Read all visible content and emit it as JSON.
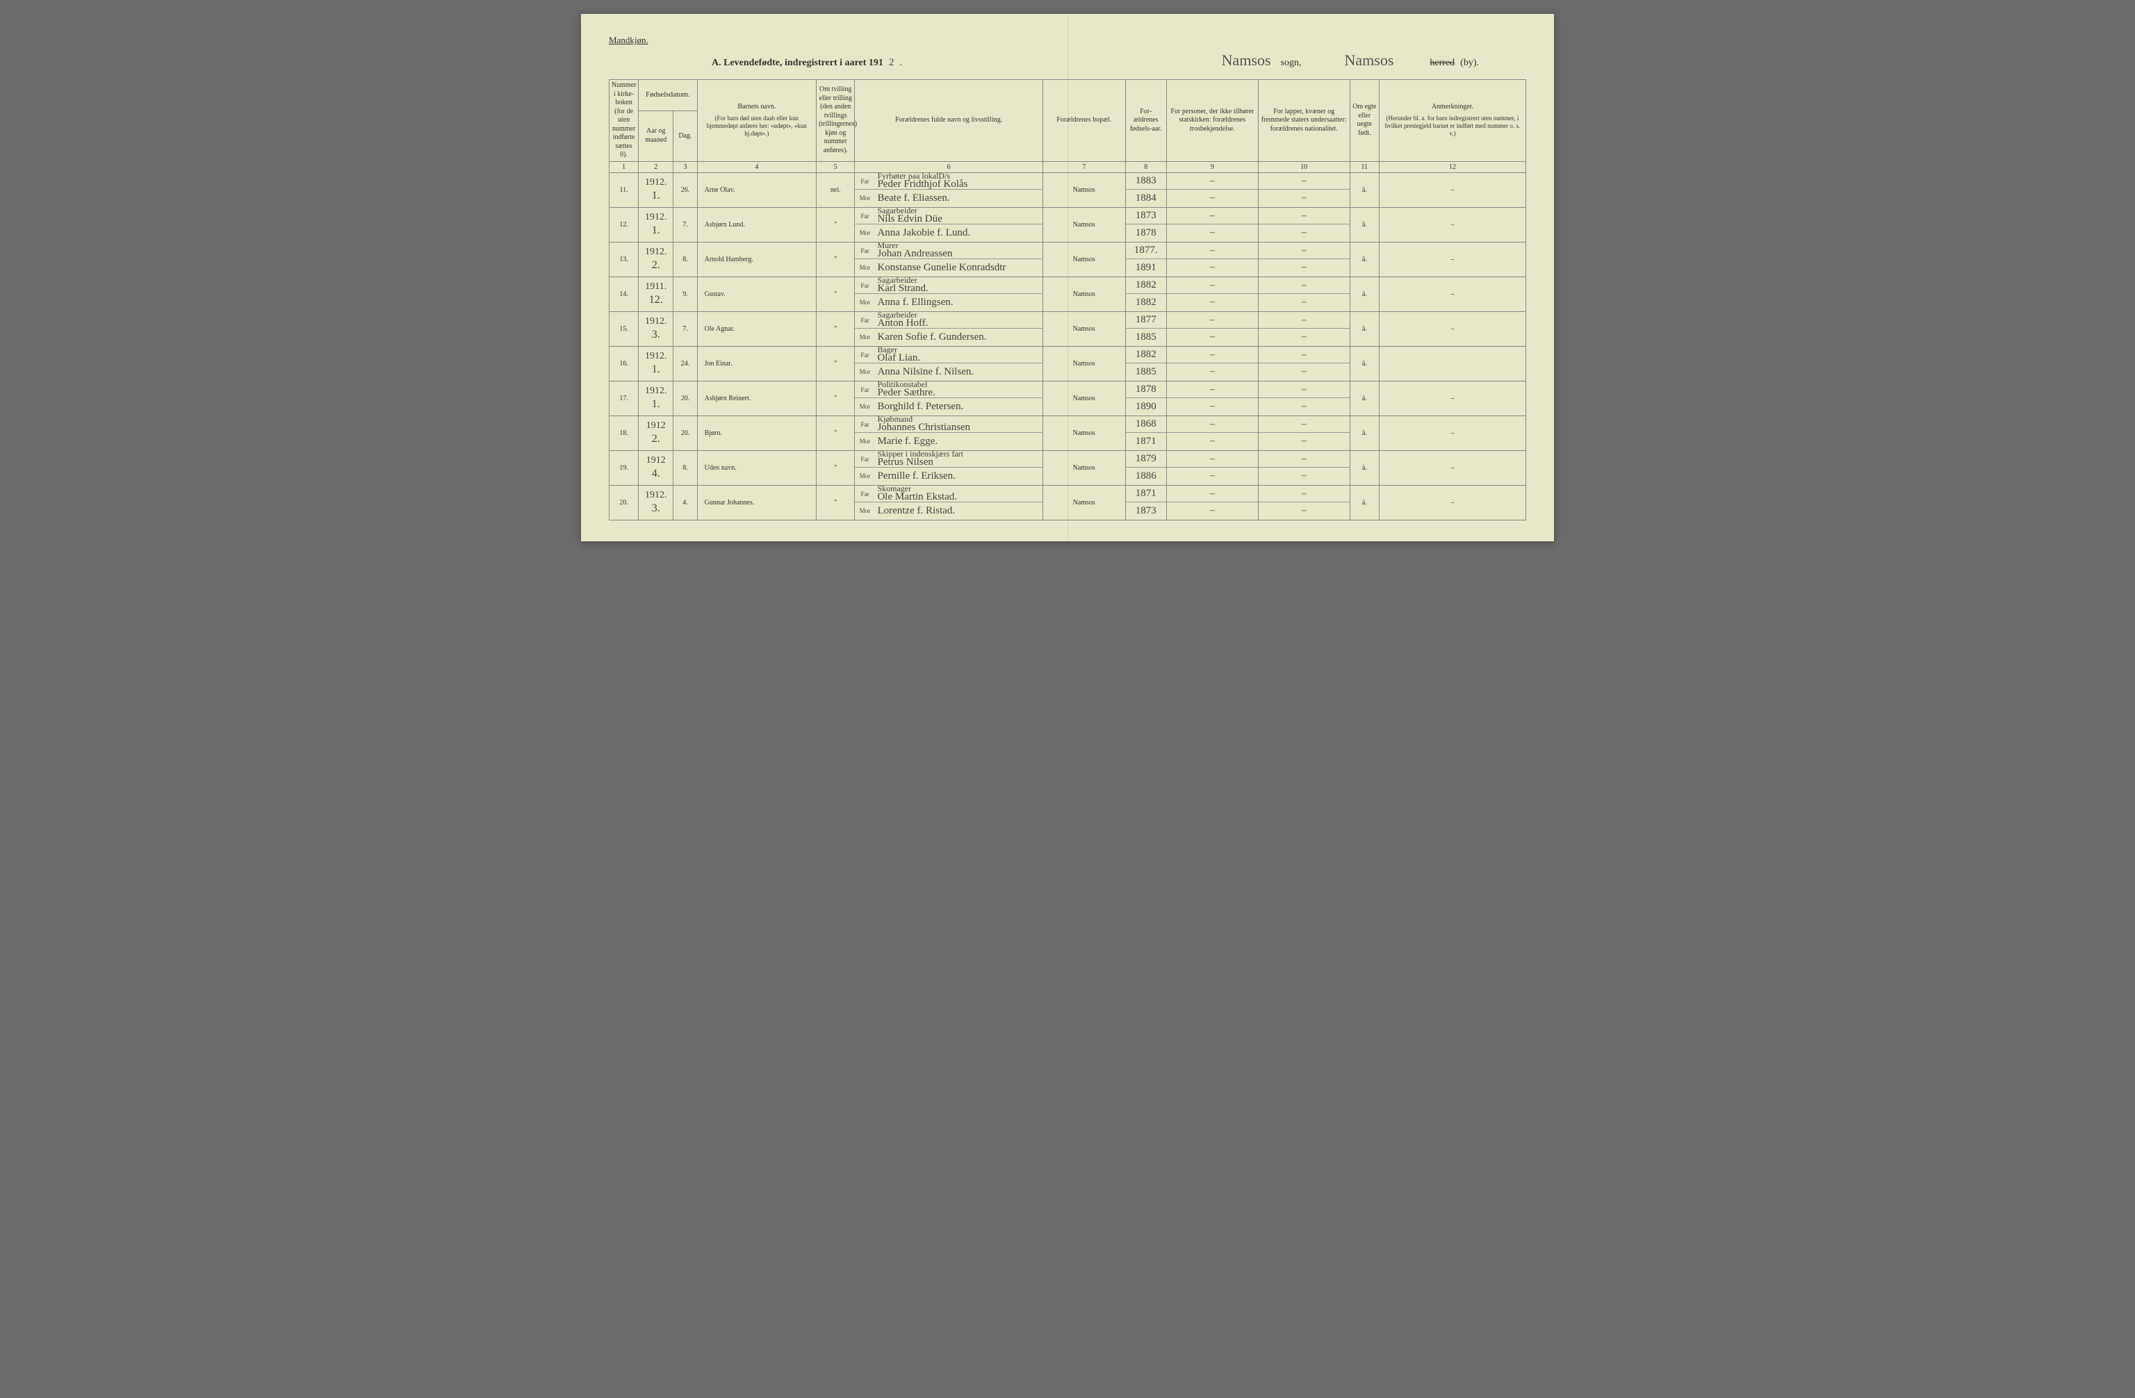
{
  "header": {
    "gender_label": "Mandkjøn.",
    "title_prefix": "A.  Levendefødte, indregistrert i aaret 191",
    "year_suffix": "2",
    "sogn_value": "Namsos",
    "sogn_label": "sogn,",
    "herred_value": "Namsos",
    "herred_strike": "herred",
    "herred_suffix": "(by)."
  },
  "columns": {
    "c1": "Nummer i kirke-boken (for de uten nummer indførte sættes 0).",
    "c2_group": "Fødselsdatum.",
    "c2": "Aar og maaned",
    "c3": "Dag.",
    "c4": "Barnets navn.",
    "c4_sub": "(For barn død uten daab eller kun hjemmedøpt anføres her: «udøpt», «kun hj.døpt».)",
    "c5": "Om tvilling eller trilling (den anden tvillings (trillingernes) kjøn og nummer anføres).",
    "c6": "Forældrenes fulde navn og livsstilling.",
    "c7": "Forældrenes bopæl.",
    "c8": "For-ældrenes fødsels-aar.",
    "c9": "For personer, der ikke tilhører statskirken: forældrenes trosbekjendelse.",
    "c10": "For lapper, kvæner og fremmede staters undersaatter: forældrenes nationalitet.",
    "c11": "Om egte eller uegte født.",
    "c12": "Anmerkninger.",
    "c12_sub": "(Herunder bl. a. for barn indregistrert uten nummer, i hvilket prestegjeld barnet er indført med nummer o. s. v.)",
    "far": "Far",
    "mor": "Mor"
  },
  "colnums": [
    "1",
    "2",
    "3",
    "4",
    "5",
    "",
    "6",
    "7",
    "8",
    "9",
    "10",
    "11",
    "12"
  ],
  "rows": [
    {
      "num": "11.",
      "year": "1912.",
      "month": "1.",
      "day": "26.",
      "child": "Arne Olav.",
      "twin": "nei.",
      "far_occ": "Fyrbøter paa lokalD/s",
      "far": "Peder Fridthjof Kolås",
      "mor": "Beate f. Eliassen.",
      "residence": "Namsos",
      "fy": "1883",
      "my": "1884",
      "rel_f": "–",
      "rel_m": "–",
      "nat_f": "–",
      "nat_m": "–",
      "legit": "ä.",
      "rem": "–"
    },
    {
      "num": "12.",
      "year": "1912.",
      "month": "1.",
      "day": "7.",
      "child": "Asbjørn Lund.",
      "twin": "\"",
      "far_occ": "Sagarbeider",
      "far": "Nils Edvin Düe",
      "mor": "Anna Jakobie f. Lund.",
      "residence": "Namsos",
      "fy": "1873",
      "my": "1878",
      "rel_f": "–",
      "rel_m": "–",
      "nat_f": "–",
      "nat_m": "–",
      "legit": "ä.",
      "rem": "–"
    },
    {
      "num": "13.",
      "year": "1912.",
      "month": "2.",
      "day": "8.",
      "child": "Arnold Hamberg.",
      "twin": "\"",
      "far_occ": "Murer",
      "far": "Johan Andreassen",
      "mor": "Konstanse Gunelie Konradsdtr",
      "residence": "Namsos",
      "fy": "1877.",
      "my": "1891",
      "rel_f": "–",
      "rel_m": "–",
      "nat_f": "–",
      "nat_m": "–",
      "legit": "ä.",
      "rem": "–"
    },
    {
      "num": "14.",
      "year": "1911.",
      "month": "12.",
      "day": "9.",
      "child": "Gustav.",
      "twin": "\"",
      "far_occ": "Sagarbeider",
      "far": "Karl Strand.",
      "mor": "Anna f. Ellingsen.",
      "residence": "Namsos",
      "fy": "1882",
      "my": "1882",
      "rel_f": "–",
      "rel_m": "–",
      "nat_f": "–",
      "nat_m": "–",
      "legit": "ä.",
      "rem": "–"
    },
    {
      "num": "15.",
      "year": "1912.",
      "month": "3.",
      "day": "7.",
      "child": "Ole Agnar.",
      "twin": "\"",
      "far_occ": "Sagarbeider",
      "far": "Anton Hoff.",
      "mor": "Karen Sofie f. Gundersen.",
      "residence": "Namsos",
      "fy": "1877",
      "my": "1885",
      "rel_f": "–",
      "rel_m": "–",
      "nat_f": "–",
      "nat_m": "–",
      "legit": "ä.",
      "rem": "–"
    },
    {
      "num": "16.",
      "year": "1912.",
      "month": "1.",
      "day": "24.",
      "child": "Jon Einar.",
      "twin": "\"",
      "far_occ": "Bager",
      "far": "Olaf Lian.",
      "mor": "Anna Nilsine f. Nilsen.",
      "residence": "Namsos",
      "fy": "1882",
      "my": "1885",
      "rel_f": "–",
      "rel_m": "–",
      "nat_f": "–",
      "nat_m": "–",
      "legit": "ä.",
      "rem": ""
    },
    {
      "num": "17.",
      "year": "1912.",
      "month": "1.",
      "day": "20.",
      "child": "Asbjørn Reinert.",
      "twin": "\"",
      "far_occ": "Politikonstabel",
      "far": "Peder Sæthre.",
      "mor": "Borghild f. Petersen.",
      "residence": "Namsos",
      "fy": "1878",
      "my": "1890",
      "rel_f": "–",
      "rel_m": "–",
      "nat_f": "–",
      "nat_m": "–",
      "legit": "ä.",
      "rem": "–"
    },
    {
      "num": "18.",
      "year": "1912",
      "month": "2.",
      "day": "20.",
      "child": "Bjørn.",
      "twin": "\"",
      "far_occ": "Kjøbmand",
      "far": "Johannes Christiansen",
      "mor": "Marie f. Egge.",
      "residence": "Namsos",
      "fy": "1868",
      "my": "1871",
      "rel_f": "–",
      "rel_m": "–",
      "nat_f": "–",
      "nat_m": "–",
      "legit": "ä.",
      "rem": "–"
    },
    {
      "num": "19.",
      "year": "1912",
      "month": "4.",
      "day": "8.",
      "child": "Uden navn.",
      "twin": "\"",
      "far_occ": "Skipper i indenskjærs fart",
      "far": "Petrus Nilsen",
      "mor": "Pernille f. Eriksen.",
      "residence": "Namsos",
      "fy": "1879",
      "my": "1886",
      "rel_f": "–",
      "rel_m": "–",
      "nat_f": "–",
      "nat_m": "–",
      "legit": "ä.",
      "rem": "–"
    },
    {
      "num": "20.",
      "year": "1912.",
      "month": "3.",
      "day": "4.",
      "child": "Gunnar Johannes.",
      "twin": "\"",
      "far_occ": "Skomager",
      "far": "Ole Martin Ekstad.",
      "mor": "Lorentze f. Ristad.",
      "residence": "Namsos",
      "fy": "1871",
      "my": "1873",
      "rel_f": "–",
      "rel_m": "–",
      "nat_f": "–",
      "nat_m": "–",
      "legit": "ä.",
      "rem": "–"
    }
  ],
  "style": {
    "page_bg": "#e8e6c8",
    "line_color": "#888",
    "script_color": "#444",
    "print_color": "#333"
  }
}
